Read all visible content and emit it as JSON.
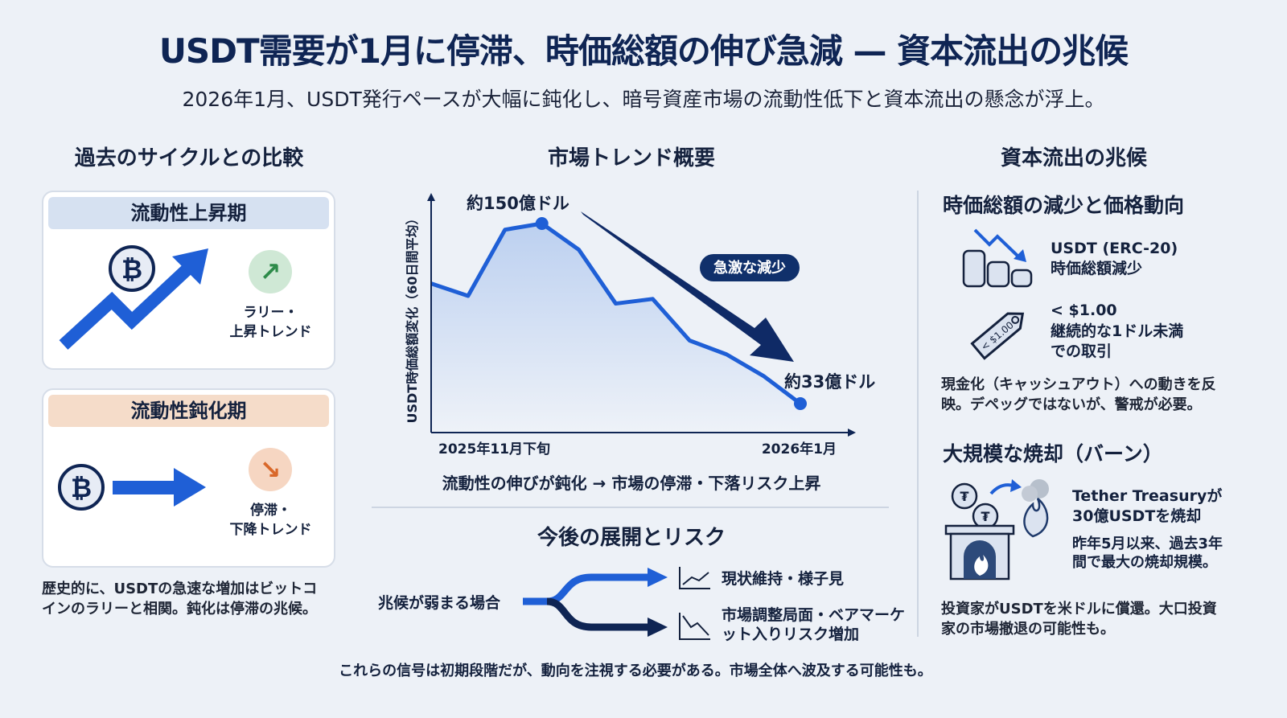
{
  "title": "USDT需要が1月に停滞、時価総額の伸び急減 — 資本流出の兆候",
  "subtitle": "2026年1月、USDT発行ペースが大幅に鈍化し、暗号資産市場の流動性低下と資本流出の懸念が浮上。",
  "left": {
    "heading": "過去のサイクルとの比較",
    "card1": {
      "label": "流動性上昇期",
      "trend": "ラリー・\n上昇トレンド",
      "color": "#d6e1f1"
    },
    "card2": {
      "label": "流動性鈍化期",
      "trend": "停滞・\n下降トレンド",
      "color": "#f5dcc9"
    },
    "note": "歴史的に、USDTの急速な増加はビットコインのラリーと相関。鈍化は停滞の兆候。"
  },
  "center": {
    "heading": "市場トレンド概要",
    "caption": "流動性の伸びが鈍化 → 市場の停滞・下落リスク上昇",
    "risk_heading": "今後の展開とリスク",
    "branch_source": "兆候が弱まる場合",
    "branch_outcomes": [
      "現状維持・様子見",
      "市場調整局面・ベアマーケット入りリスク増加"
    ]
  },
  "chart_data": {
    "type": "area",
    "ylabel": "USDT時価総額変化（60日間平均）",
    "x_tick_labels": [
      "2025年11月下旬",
      "2026年1月"
    ],
    "values": [
      111,
      103,
      146,
      150,
      133,
      98,
      101,
      74,
      65,
      51,
      33
    ],
    "unit": "億ドル",
    "peak_label": "約150億ドル",
    "end_label": "約33億ドル",
    "annotation": "急激な減少",
    "line_color": "#1f5fd6",
    "arrow_color": "#0f2a66"
  },
  "right": {
    "heading": "資本流出の兆候",
    "sub1": "時価総額の減少と価格動向",
    "item1": {
      "title": "USDT (ERC-20)",
      "text": "時価総額減少"
    },
    "item2": {
      "title": "< $1.00",
      "text": "継続的な1ドル未満\nでの取引",
      "tag": "< $1.00"
    },
    "note1": "現金化（キャッシュアウト）への動きを反映。デペッグではないが、警戒が必要。",
    "sub2": "大規模な焼却（バーン）",
    "item3": {
      "title": "Tether Treasuryが\n30億USDTを焼却",
      "text": "昨年5月以来、過去3年間で最大の焼却規模。"
    },
    "note2": "投資家がUSDTを米ドルに償還。大口投資家の市場撤退の可能性も。"
  },
  "footer": "これらの信号は初期段階だが、動向を注視する必要がある。市場全体へ波及する可能性も。"
}
